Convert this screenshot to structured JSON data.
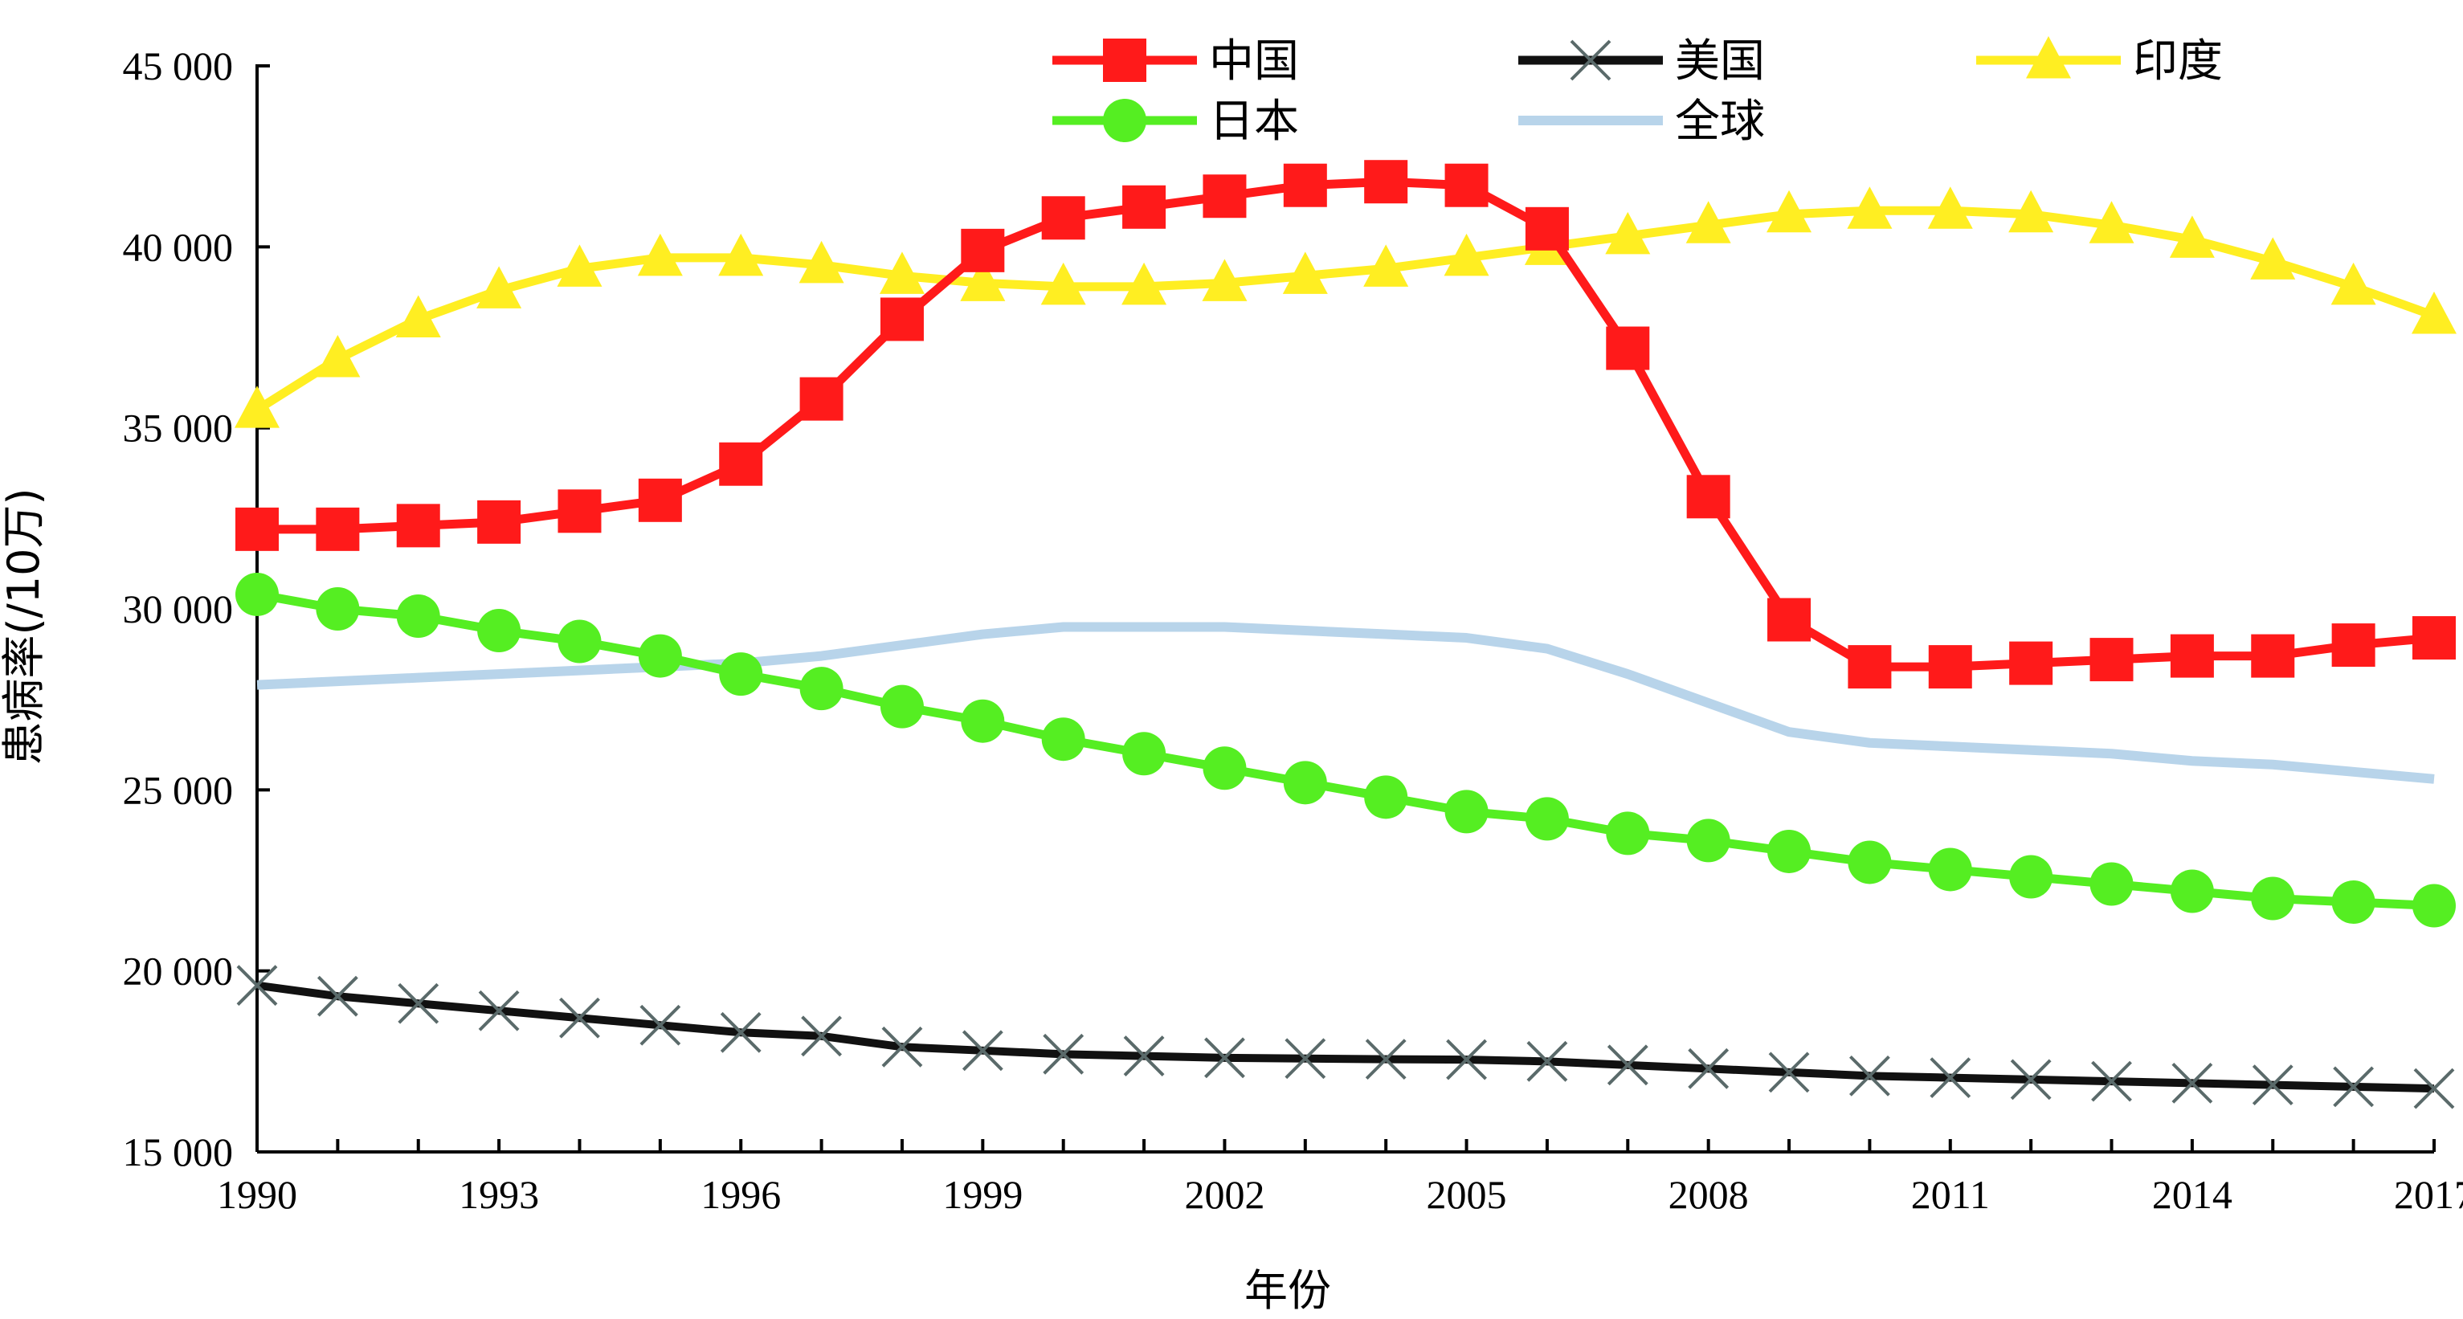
{
  "chart_data": {
    "type": "line",
    "title": "",
    "xlabel": "年份",
    "ylabel": "患病率(/10万)",
    "x": [
      1990,
      1991,
      1992,
      1993,
      1994,
      1995,
      1996,
      1997,
      1998,
      1999,
      2000,
      2001,
      2002,
      2003,
      2004,
      2005,
      2006,
      2007,
      2008,
      2009,
      2010,
      2011,
      2012,
      2013,
      2014,
      2015,
      2016,
      2017
    ],
    "x_ticks": [
      1990,
      1993,
      1996,
      1999,
      2002,
      2005,
      2008,
      2011,
      2014,
      2017
    ],
    "x_tick_labels": [
      "1990",
      "1993",
      "1996",
      "1999",
      "2002",
      "2005",
      "2008",
      "2011",
      "2014",
      "2017"
    ],
    "xlim": [
      1990,
      2017
    ],
    "ylim": [
      15000,
      45000
    ],
    "y_ticks": [
      15000,
      20000,
      25000,
      30000,
      35000,
      40000,
      45000
    ],
    "y_tick_labels": [
      "15 000",
      "20 000",
      "25 000",
      "30 000",
      "35 000",
      "40 000",
      "45 000"
    ],
    "grid": false,
    "legend_position": "top",
    "series": [
      {
        "name": "中国",
        "color": "#ff1a1a",
        "marker": "square",
        "values": [
          32200,
          32200,
          32300,
          32400,
          32700,
          33000,
          34000,
          35800,
          38000,
          39900,
          40800,
          41100,
          41400,
          41700,
          41800,
          41700,
          40500,
          37200,
          33100,
          29700,
          28400,
          28400,
          28500,
          28600,
          28700,
          28700,
          29000,
          29200
        ]
      },
      {
        "name": "美国",
        "color": "#111111",
        "marker": "x",
        "values": [
          19600,
          19300,
          19100,
          18900,
          18700,
          18500,
          18300,
          18200,
          17900,
          17800,
          17700,
          17650,
          17600,
          17580,
          17560,
          17550,
          17500,
          17400,
          17300,
          17200,
          17100,
          17050,
          17000,
          16950,
          16900,
          16850,
          16800,
          16750
        ]
      },
      {
        "name": "印度",
        "color": "#ffee22",
        "marker": "triangle",
        "values": [
          35500,
          36900,
          38000,
          38800,
          39400,
          39700,
          39700,
          39500,
          39200,
          39000,
          38900,
          38900,
          39000,
          39200,
          39400,
          39700,
          40000,
          40300,
          40600,
          40900,
          41000,
          41000,
          40900,
          40600,
          40200,
          39600,
          38900,
          38100
        ]
      },
      {
        "name": "日本",
        "color": "#55ee22",
        "marker": "circle",
        "values": [
          30400,
          30000,
          29800,
          29400,
          29100,
          28700,
          28200,
          27800,
          27300,
          26900,
          26400,
          26000,
          25600,
          25200,
          24800,
          24400,
          24200,
          23800,
          23600,
          23300,
          23000,
          22800,
          22600,
          22400,
          22200,
          22000,
          21900,
          21800
        ]
      },
      {
        "name": "全球",
        "color": "#b8d4ea",
        "marker": "none",
        "values": [
          27900,
          28000,
          28100,
          28200,
          28300,
          28400,
          28500,
          28700,
          29000,
          29300,
          29500,
          29500,
          29500,
          29400,
          29300,
          29200,
          28900,
          28200,
          27400,
          26600,
          26300,
          26200,
          26100,
          26000,
          25800,
          25700,
          25500,
          25300
        ]
      }
    ]
  }
}
